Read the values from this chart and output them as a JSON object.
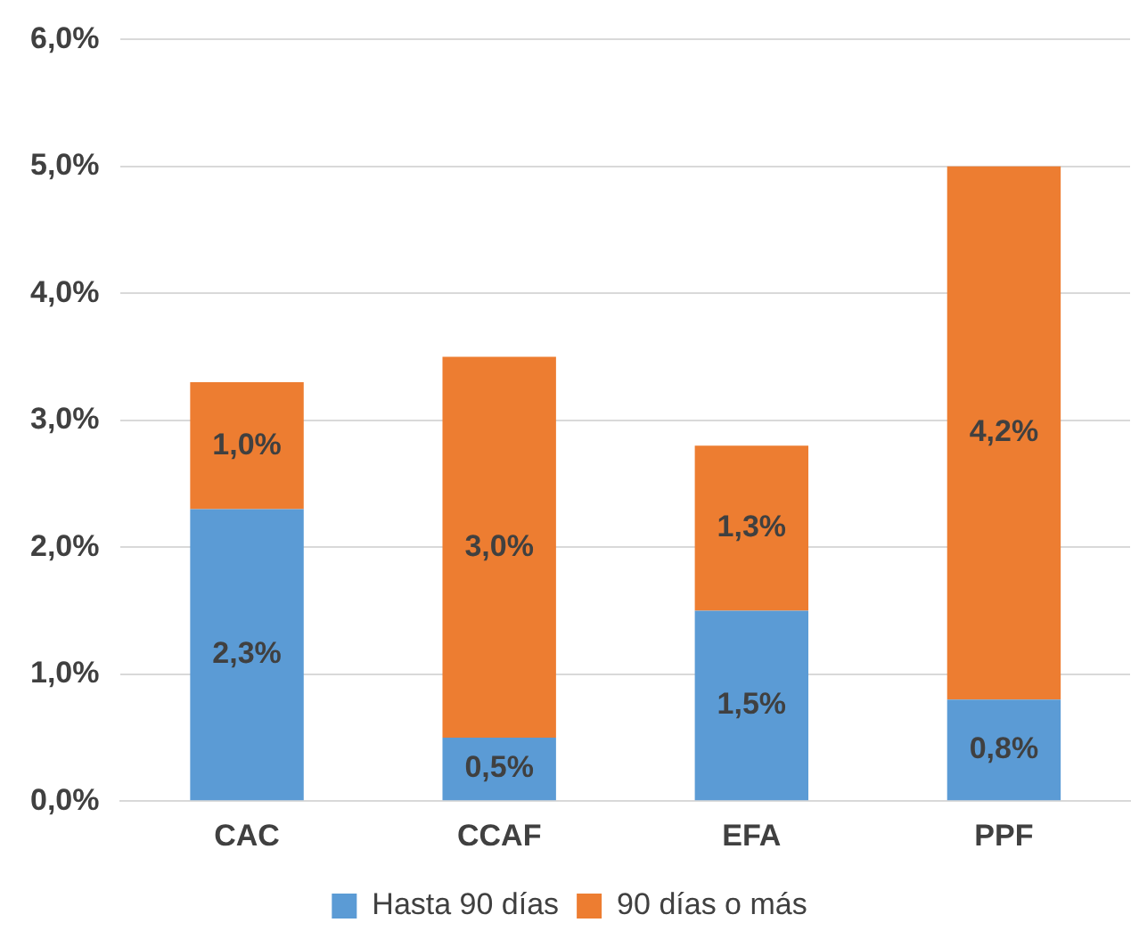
{
  "chart_data": {
    "type": "bar",
    "stacked": true,
    "categories": [
      "CAC",
      "CCAF",
      "EFA",
      "PPF"
    ],
    "series": [
      {
        "name": "Hasta 90 días",
        "color": "#5b9bd5",
        "values": [
          2.3,
          0.5,
          1.5,
          0.8
        ],
        "value_labels": [
          "2,3%",
          "0,5%",
          "1,5%",
          "0,8%"
        ]
      },
      {
        "name": "90 días o más",
        "color": "#ed7d31",
        "values": [
          1.0,
          3.0,
          1.3,
          4.2
        ],
        "value_labels": [
          "1,0%",
          "3,0%",
          "1,3%",
          "4,2%"
        ]
      }
    ],
    "ylim": [
      0,
      6
    ],
    "yticks": [
      {
        "value": 0,
        "label": "0,0%"
      },
      {
        "value": 1,
        "label": "1,0%"
      },
      {
        "value": 2,
        "label": "2,0%"
      },
      {
        "value": 3,
        "label": "3,0%"
      },
      {
        "value": 4,
        "label": "4,0%"
      },
      {
        "value": 5,
        "label": "5,0%"
      },
      {
        "value": 6,
        "label": "6,0%"
      }
    ],
    "grid": "y",
    "legend": "bottom"
  }
}
